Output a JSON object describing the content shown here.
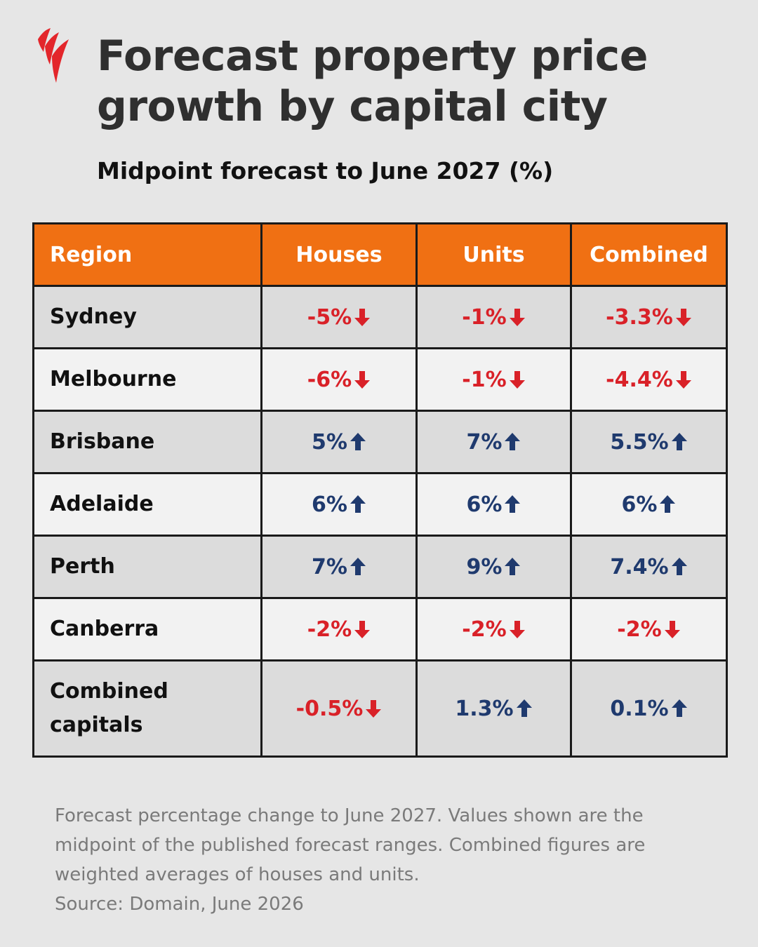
{
  "brand": {
    "logo_icon": "sbs-logo-icon",
    "logo_color": "#e3262b"
  },
  "title": "Forecast property price growth by capital city",
  "subtitle": "Midpoint forecast to June 2027 (%)",
  "colors": {
    "header_bg": "#f07013",
    "negative": "#d92128",
    "positive": "#1f3a6e"
  },
  "chart_data": {
    "type": "table",
    "title": "Forecast property price growth by capital city",
    "subtitle": "Midpoint forecast to June 2027 (%)",
    "columns": [
      "Region",
      "Houses",
      "Units",
      "Combined"
    ],
    "rows": [
      {
        "region": "Sydney",
        "houses": "-5%",
        "units": "-1%",
        "combined": "-3.3%",
        "houses_dir": "down",
        "units_dir": "down",
        "combined_dir": "down"
      },
      {
        "region": "Melbourne",
        "houses": "-6%",
        "units": "-1%",
        "combined": "-4.4%",
        "houses_dir": "down",
        "units_dir": "down",
        "combined_dir": "down"
      },
      {
        "region": "Brisbane",
        "houses": "5%",
        "units": "7%",
        "combined": "5.5%",
        "houses_dir": "up",
        "units_dir": "up",
        "combined_dir": "up"
      },
      {
        "region": "Adelaide",
        "houses": "6%",
        "units": "6%",
        "combined": "6%",
        "houses_dir": "up",
        "units_dir": "up",
        "combined_dir": "up"
      },
      {
        "region": "Perth",
        "houses": "7%",
        "units": "9%",
        "combined": "7.4%",
        "houses_dir": "up",
        "units_dir": "up",
        "combined_dir": "up"
      },
      {
        "region": "Canberra",
        "houses": "-2%",
        "units": "-2%",
        "combined": "-2%",
        "houses_dir": "down",
        "units_dir": "down",
        "combined_dir": "down"
      },
      {
        "region": "Combined capitals",
        "houses": "-0.5%",
        "units": "1.3%",
        "combined": "0.1%",
        "houses_dir": "down",
        "units_dir": "up",
        "combined_dir": "up"
      }
    ]
  },
  "footnote": {
    "text": "Forecast percentage change to June 2027. Values shown are the midpoint of the published forecast ranges. Combined figures are weighted averages of houses and units.",
    "source": "Source: Domain, June 2026"
  }
}
